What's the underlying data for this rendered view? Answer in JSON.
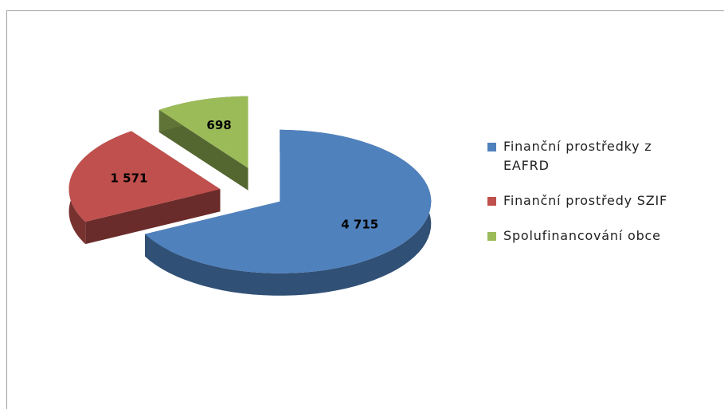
{
  "chart_data": {
    "type": "pie3d",
    "categories": [
      "Finanční prostředky z EAFRD",
      "Finanční prostředy SZIF",
      "Spolufinancování obce"
    ],
    "values": [
      4715,
      1571,
      698
    ],
    "value_labels": [
      "4 715",
      "1 571",
      "698"
    ],
    "colors": [
      "#4f81bd",
      "#c0504d",
      "#9bbb59"
    ],
    "legend": "right"
  }
}
